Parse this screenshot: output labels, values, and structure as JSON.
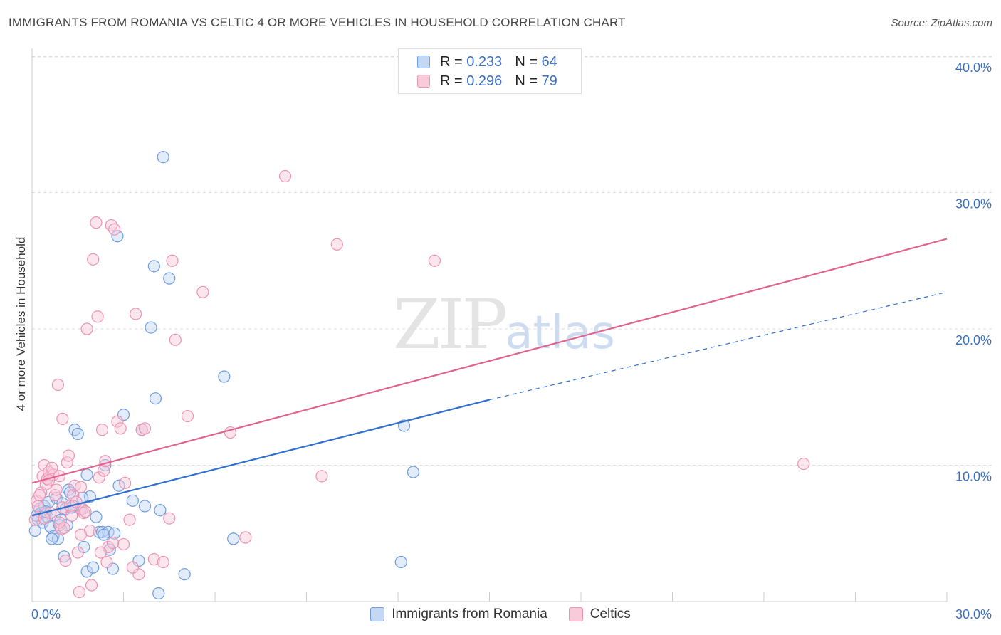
{
  "title": "IMMIGRANTS FROM ROMANIA VS CELTIC 4 OR MORE VEHICLES IN HOUSEHOLD CORRELATION CHART",
  "source": "Source: ZipAtlas.com",
  "watermark": {
    "zip": "ZIP",
    "atlas": "atlas"
  },
  "legend": [
    {
      "r_label": "R =",
      "r_value": "0.233",
      "n_label": "N =",
      "n_value": "64"
    },
    {
      "r_label": "R =",
      "r_value": "0.296",
      "n_label": "N =",
      "n_value": "79"
    }
  ],
  "chart_data": {
    "type": "scatter",
    "xlabel": "",
    "ylabel": "4 or more Vehicles in Household",
    "xlim": [
      0,
      30
    ],
    "ylim": [
      0,
      40
    ],
    "x_tick_labels": [
      "0.0%",
      "30.0%"
    ],
    "y_ticks": [
      10,
      20,
      30,
      40
    ],
    "y_tick_labels": [
      "10.0%",
      "20.0%",
      "30.0%",
      "40.0%"
    ],
    "grid": true,
    "colors": {
      "romania": "#5b8fd9",
      "celtics": "#e87fa3",
      "romania_line": "#2f6fce",
      "celtics_line": "#e0638f",
      "tick_label": "#3b6fc4"
    },
    "series": [
      {
        "name": "Immigrants from Romania",
        "key": "romania",
        "trend": {
          "x0": 0,
          "y0": 6.3,
          "x1": 15,
          "y1": 14.8,
          "dashed_to_x": 30,
          "dashed_to_y": 22.7
        },
        "points": [
          [
            0.1,
            5.2
          ],
          [
            0.2,
            6.0
          ],
          [
            0.25,
            6.8
          ],
          [
            0.3,
            6.5
          ],
          [
            0.35,
            5.8
          ],
          [
            0.4,
            7.0
          ],
          [
            0.5,
            6.2
          ],
          [
            0.55,
            7.3
          ],
          [
            0.6,
            5.5
          ],
          [
            0.7,
            4.8
          ],
          [
            0.75,
            6.3
          ],
          [
            0.8,
            7.6
          ],
          [
            0.85,
            4.6
          ],
          [
            0.9,
            5.6
          ],
          [
            1.0,
            7.2
          ],
          [
            1.05,
            3.3
          ],
          [
            1.1,
            6.8
          ],
          [
            1.2,
            8.2
          ],
          [
            1.25,
            8.0
          ],
          [
            1.3,
            6.9
          ],
          [
            1.4,
            12.6
          ],
          [
            1.5,
            12.3
          ],
          [
            1.6,
            6.8
          ],
          [
            1.7,
            4.0
          ],
          [
            1.8,
            2.2
          ],
          [
            1.8,
            9.3
          ],
          [
            1.9,
            7.7
          ],
          [
            2.0,
            2.5
          ],
          [
            2.1,
            6.2
          ],
          [
            2.2,
            5.1
          ],
          [
            2.3,
            5.1
          ],
          [
            2.4,
            10.0
          ],
          [
            2.5,
            5.1
          ],
          [
            2.55,
            3.8
          ],
          [
            2.65,
            2.4
          ],
          [
            2.8,
            26.8
          ],
          [
            2.85,
            8.5
          ],
          [
            3.0,
            13.7
          ],
          [
            3.3,
            7.4
          ],
          [
            3.5,
            3.0
          ],
          [
            3.6,
            12.6
          ],
          [
            3.9,
            20.1
          ],
          [
            4.0,
            24.6
          ],
          [
            4.05,
            14.9
          ],
          [
            4.15,
            0.6
          ],
          [
            4.2,
            6.7
          ],
          [
            4.3,
            32.6
          ],
          [
            4.5,
            23.7
          ],
          [
            5.0,
            2.0
          ],
          [
            6.3,
            16.5
          ],
          [
            6.6,
            4.6
          ],
          [
            12.1,
            2.9
          ],
          [
            12.2,
            12.9
          ],
          [
            12.5,
            9.5
          ],
          [
            0.15,
            6.3
          ],
          [
            0.45,
            6.6
          ],
          [
            0.95,
            6.0
          ],
          [
            1.35,
            7.0
          ],
          [
            1.65,
            7.6
          ],
          [
            2.35,
            4.9
          ],
          [
            2.7,
            5.0
          ],
          [
            3.7,
            7.0
          ],
          [
            0.65,
            4.6
          ],
          [
            1.15,
            5.6
          ]
        ]
      },
      {
        "name": "Celtics",
        "key": "celtics",
        "trend": {
          "x0": 0,
          "y0": 8.7,
          "x1": 30,
          "y1": 26.6
        },
        "points": [
          [
            0.1,
            6.0
          ],
          [
            0.15,
            7.4
          ],
          [
            0.2,
            7.0
          ],
          [
            0.3,
            8.0
          ],
          [
            0.35,
            9.2
          ],
          [
            0.4,
            10.0
          ],
          [
            0.45,
            8.6
          ],
          [
            0.5,
            9.0
          ],
          [
            0.55,
            9.5
          ],
          [
            0.6,
            6.5
          ],
          [
            0.7,
            9.3
          ],
          [
            0.75,
            7.8
          ],
          [
            0.8,
            8.2
          ],
          [
            0.85,
            15.9
          ],
          [
            0.9,
            9.2
          ],
          [
            0.95,
            5.3
          ],
          [
            1.0,
            6.9
          ],
          [
            1.0,
            13.4
          ],
          [
            1.1,
            3.0
          ],
          [
            1.15,
            10.2
          ],
          [
            1.2,
            10.7
          ],
          [
            1.25,
            7.0
          ],
          [
            1.3,
            6.3
          ],
          [
            1.35,
            7.8
          ],
          [
            1.4,
            8.5
          ],
          [
            1.5,
            3.6
          ],
          [
            1.55,
            0.7
          ],
          [
            1.6,
            8.4
          ],
          [
            1.65,
            6.8
          ],
          [
            1.7,
            6.5
          ],
          [
            1.8,
            20.0
          ],
          [
            1.9,
            5.2
          ],
          [
            1.95,
            1.2
          ],
          [
            2.0,
            25.1
          ],
          [
            2.1,
            27.8
          ],
          [
            2.15,
            20.9
          ],
          [
            2.2,
            9.1
          ],
          [
            2.3,
            12.6
          ],
          [
            2.35,
            9.6
          ],
          [
            2.4,
            10.3
          ],
          [
            2.5,
            4.0
          ],
          [
            2.6,
            27.6
          ],
          [
            2.7,
            27.3
          ],
          [
            2.8,
            13.2
          ],
          [
            2.9,
            12.7
          ],
          [
            3.0,
            4.2
          ],
          [
            3.2,
            6.0
          ],
          [
            3.4,
            21.1
          ],
          [
            3.5,
            2.0
          ],
          [
            3.6,
            12.6
          ],
          [
            3.7,
            12.7
          ],
          [
            4.0,
            3.1
          ],
          [
            4.3,
            2.9
          ],
          [
            4.5,
            6.1
          ],
          [
            4.6,
            25.0
          ],
          [
            4.7,
            19.2
          ],
          [
            5.1,
            13.6
          ],
          [
            5.6,
            22.7
          ],
          [
            6.5,
            12.4
          ],
          [
            7.0,
            4.7
          ],
          [
            8.3,
            31.2
          ],
          [
            9.5,
            9.2
          ],
          [
            10.0,
            26.2
          ],
          [
            13.2,
            25.0
          ],
          [
            25.3,
            10.1
          ],
          [
            0.25,
            7.8
          ],
          [
            0.55,
            8.9
          ],
          [
            0.65,
            9.8
          ],
          [
            1.05,
            5.4
          ],
          [
            1.45,
            7.3
          ],
          [
            1.75,
            6.6
          ],
          [
            2.25,
            3.6
          ],
          [
            2.45,
            2.9
          ],
          [
            3.05,
            8.7
          ],
          [
            3.3,
            2.5
          ],
          [
            0.4,
            6.1
          ],
          [
            0.9,
            5.8
          ],
          [
            1.6,
            4.9
          ],
          [
            2.65,
            4.3
          ]
        ]
      }
    ]
  }
}
